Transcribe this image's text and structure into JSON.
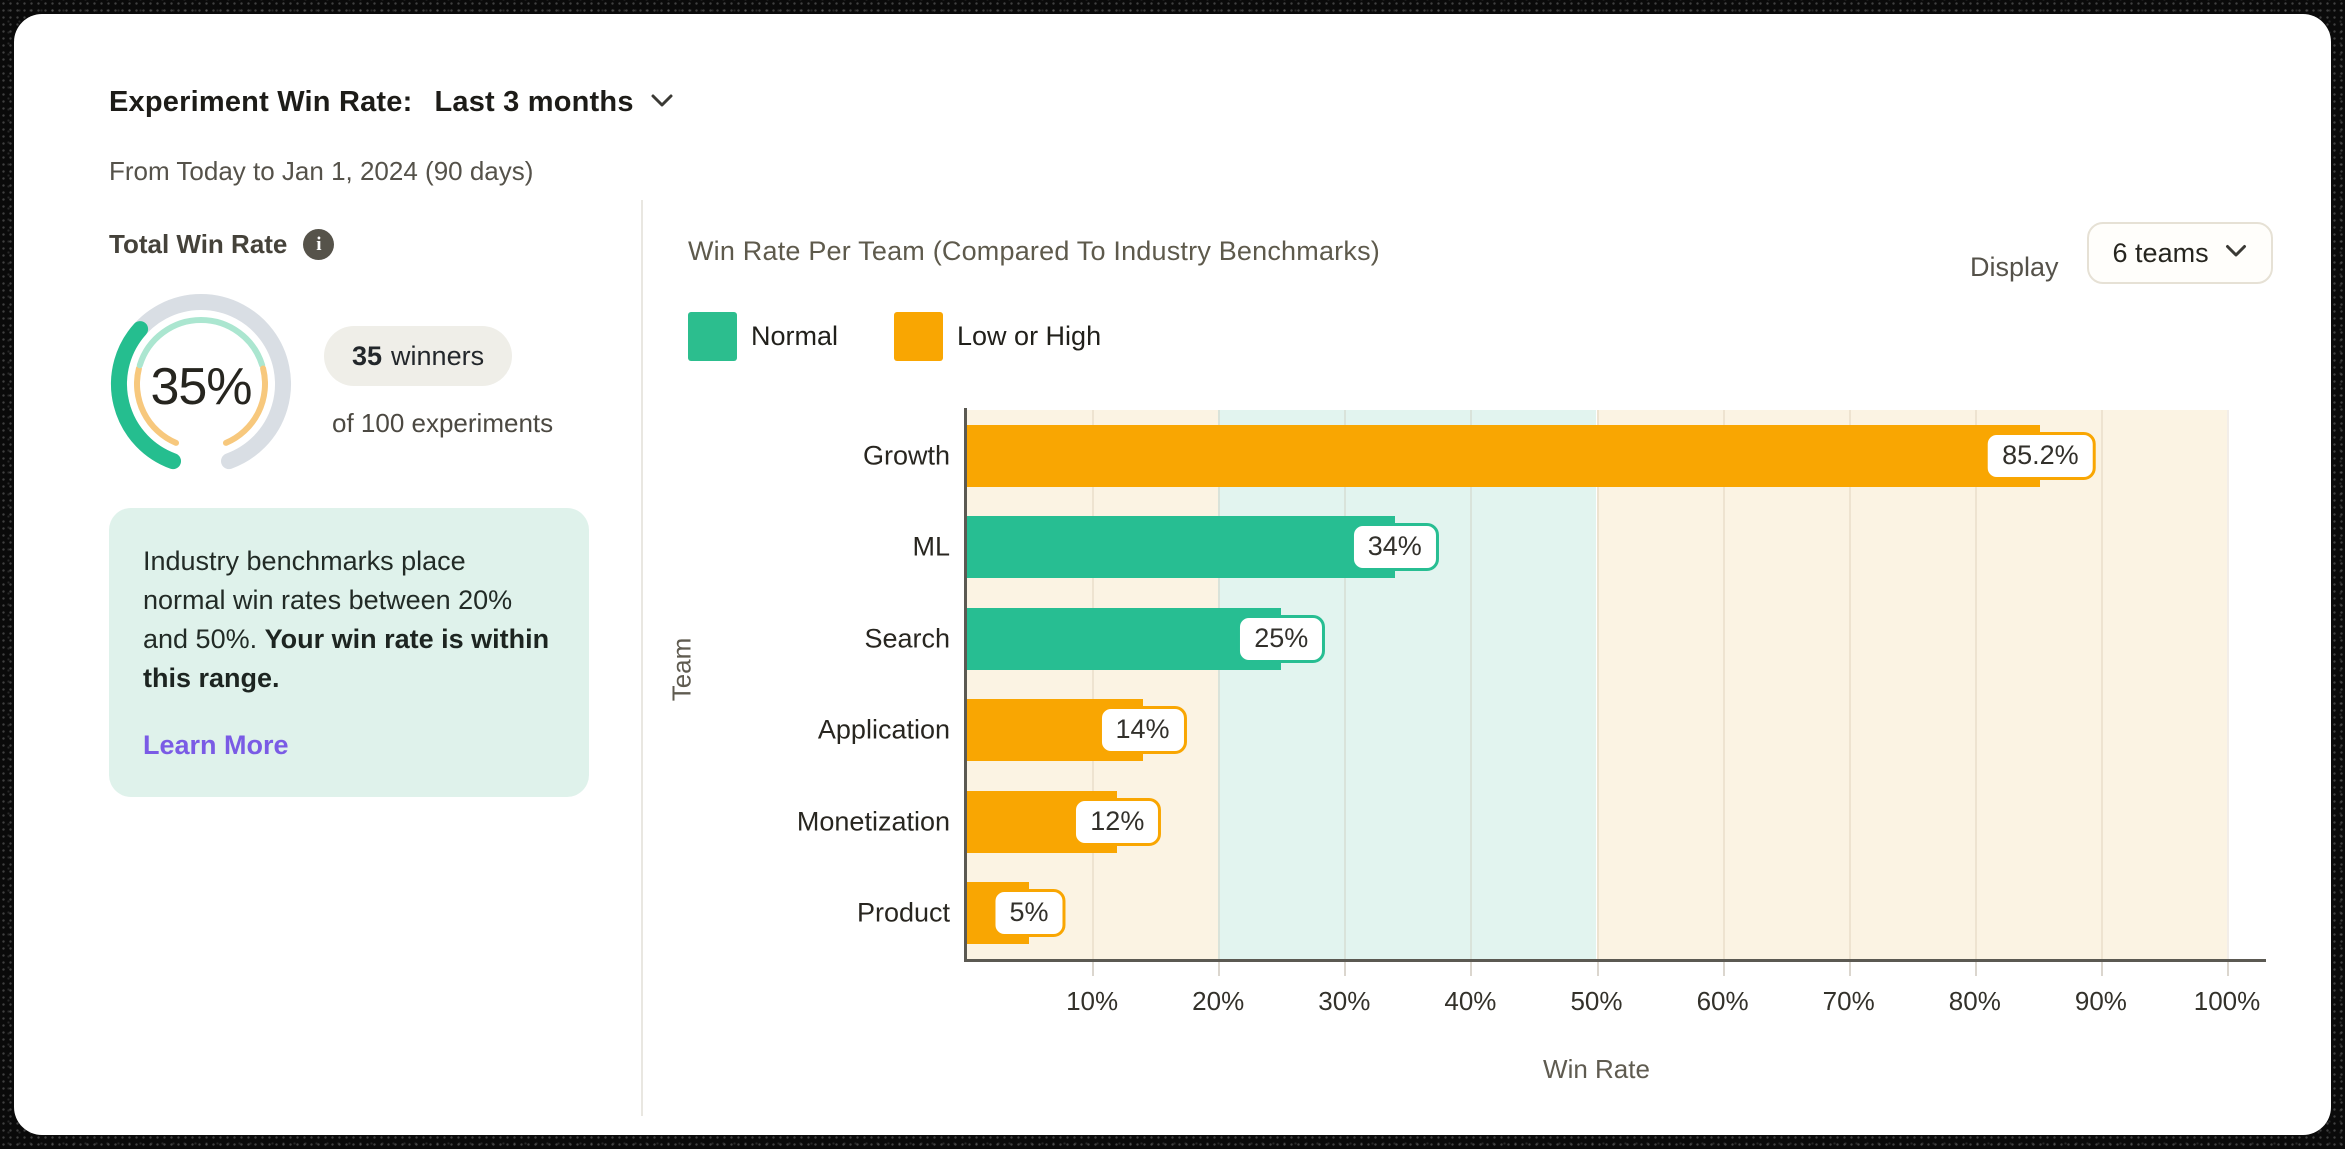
{
  "header": {
    "title": "Experiment Win Rate:",
    "range_value": "Last 3 months",
    "subtitle": "From Today to Jan 1, 2024  (90 days)"
  },
  "summary": {
    "label": "Total Win Rate",
    "percent": "35%",
    "winners_value": "35",
    "winners_suffix": "winners",
    "experiments_line": "of 100 experiments",
    "note_regular": "Industry benchmarks place normal win rates between 20% and 50%. ",
    "note_bold": "Your win rate is within this range.",
    "learn_more": "Learn More"
  },
  "gauge": {
    "percent": 35,
    "track_color": "#d9dee4",
    "progress_color": "#25be8f",
    "zone_normal_color": "#abe6d0",
    "zone_outlier_color": "#f7c87d"
  },
  "chart_panel": {
    "title": "Win Rate Per Team (Compared To Industry Benchmarks)",
    "display_label": "Display",
    "display_value": "6 teams",
    "legend": [
      {
        "label": "Normal",
        "color": "#2cbe8e"
      },
      {
        "label": "Low or High",
        "color": "#f9a602"
      }
    ]
  },
  "chart_data": {
    "type": "bar",
    "orientation": "horizontal",
    "title": "Win Rate Per Team (Compared To Industry Benchmarks)",
    "xlabel": "Win Rate",
    "ylabel": "Team",
    "xlim": [
      0,
      100
    ],
    "grid": true,
    "legend_position": "top-left",
    "xticks": [
      "10%",
      "20%",
      "30%",
      "40%",
      "50%",
      "60%",
      "70%",
      "80%",
      "90%",
      "100%"
    ],
    "categories": [
      "Growth",
      "ML",
      "Search",
      "Application",
      "Monetization",
      "Product"
    ],
    "values": [
      85.2,
      34,
      25,
      14,
      12,
      5
    ],
    "value_labels": [
      "85.2%",
      "34%",
      "25%",
      "14%",
      "12%",
      "5%"
    ],
    "statuses": [
      "low_or_high",
      "normal",
      "normal",
      "low_or_high",
      "low_or_high",
      "low_or_high"
    ],
    "status_colors": {
      "normal": "#27be92",
      "low_or_high": "#f9a602"
    },
    "benchmark_bands": [
      {
        "from": 0,
        "to": 20,
        "color": "#fbf3e3"
      },
      {
        "from": 20,
        "to": 50,
        "color": "#e2f4ef"
      },
      {
        "from": 50,
        "to": 100,
        "color": "#fbf3e3"
      }
    ]
  }
}
